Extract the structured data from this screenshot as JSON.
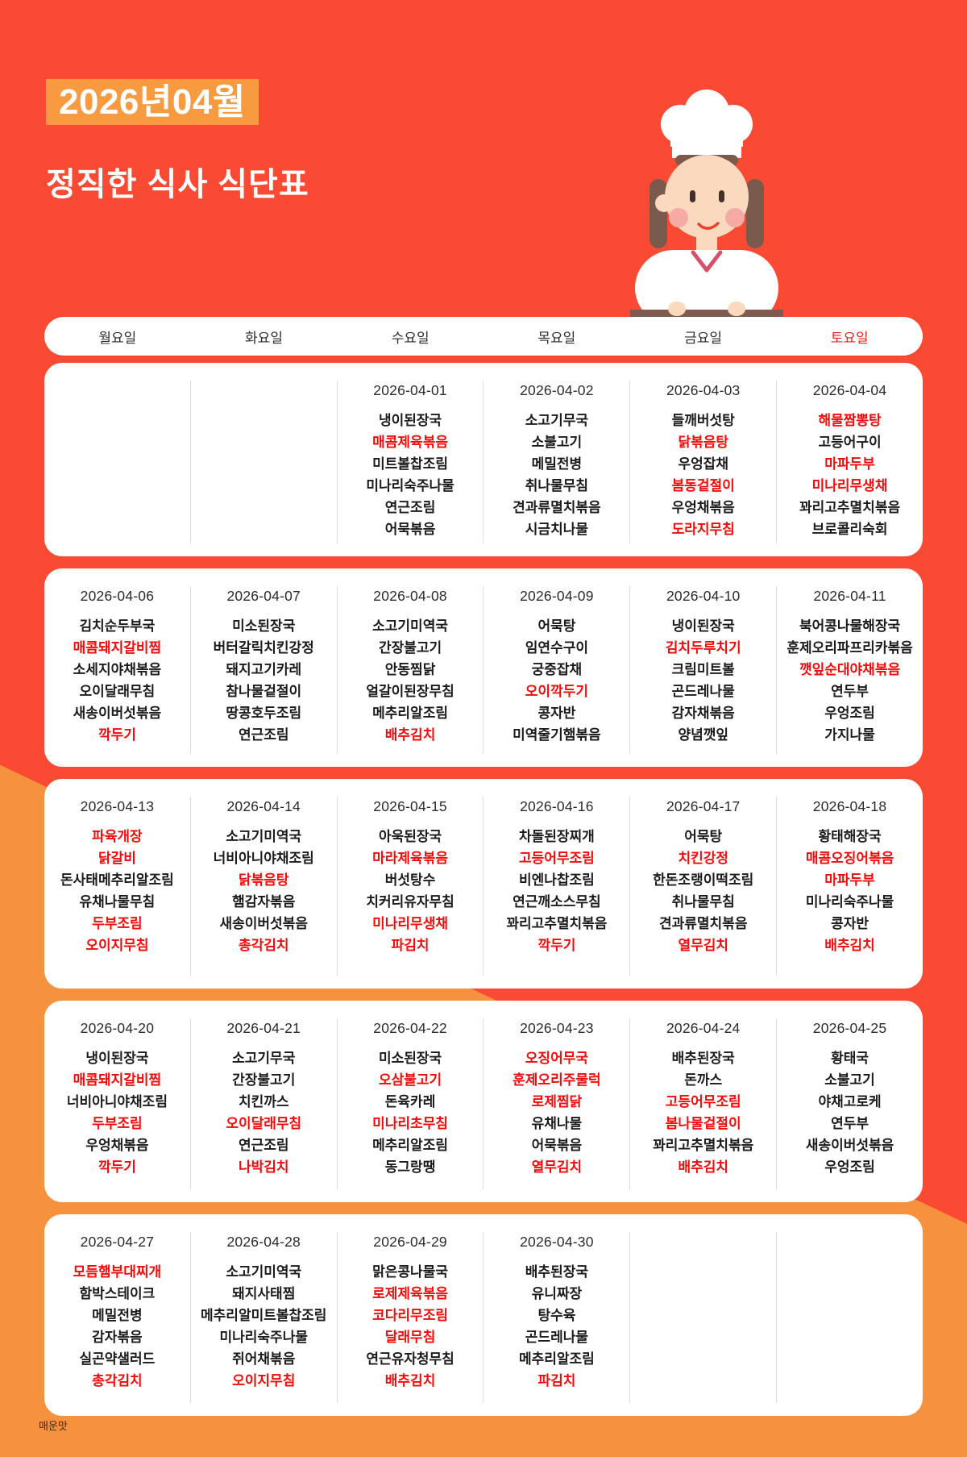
{
  "page": {
    "month_badge": "2026년04월",
    "title": "정직한 식사 식단표",
    "legend": "매운맛"
  },
  "colors": {
    "background_red": "#fb4a33",
    "background_orange": "#f6913e",
    "badge_orange": "#f89b40",
    "spicy_red": "#f50a0a",
    "saturday_red": "#fb1f1f",
    "card_white": "#ffffff"
  },
  "weekday_header": {
    "days": [
      "월요일",
      "화요일",
      "수요일",
      "목요일",
      "금요일",
      "토요일"
    ],
    "highlight_index": 5
  },
  "calendar": {
    "weeks": [
      {
        "days": [
          {
            "date": null,
            "items": []
          },
          {
            "date": null,
            "items": []
          },
          {
            "date": "2026-04-01",
            "items": [
              {
                "name": "냉이된장국",
                "spicy": false
              },
              {
                "name": "매콤제육볶음",
                "spicy": true
              },
              {
                "name": "미트볼찹조림",
                "spicy": false
              },
              {
                "name": "미나리숙주나물",
                "spicy": false
              },
              {
                "name": "연근조림",
                "spicy": false
              },
              {
                "name": "어묵볶음",
                "spicy": false
              }
            ]
          },
          {
            "date": "2026-04-02",
            "items": [
              {
                "name": "소고기무국",
                "spicy": false
              },
              {
                "name": "소불고기",
                "spicy": false
              },
              {
                "name": "메밀전병",
                "spicy": false
              },
              {
                "name": "취나물무침",
                "spicy": false
              },
              {
                "name": "견과류멸치볶음",
                "spicy": false
              },
              {
                "name": "시금치나물",
                "spicy": false
              }
            ]
          },
          {
            "date": "2026-04-03",
            "items": [
              {
                "name": "들깨버섯탕",
                "spicy": false
              },
              {
                "name": "닭볶음탕",
                "spicy": true
              },
              {
                "name": "우엉잡채",
                "spicy": false
              },
              {
                "name": "봄동겉절이",
                "spicy": true
              },
              {
                "name": "우엉채볶음",
                "spicy": false
              },
              {
                "name": "도라지무침",
                "spicy": true
              }
            ]
          },
          {
            "date": "2026-04-04",
            "items": [
              {
                "name": "해물짬뽕탕",
                "spicy": true
              },
              {
                "name": "고등어구이",
                "spicy": false
              },
              {
                "name": "마파두부",
                "spicy": true
              },
              {
                "name": "미나리무생채",
                "spicy": true
              },
              {
                "name": "꽈리고추멸치볶음",
                "spicy": false
              },
              {
                "name": "브로콜리숙회",
                "spicy": false
              }
            ]
          }
        ]
      },
      {
        "days": [
          {
            "date": "2026-04-06",
            "items": [
              {
                "name": "김치순두부국",
                "spicy": false
              },
              {
                "name": "매콤돼지갈비찜",
                "spicy": true
              },
              {
                "name": "소세지야채볶음",
                "spicy": false
              },
              {
                "name": "오이달래무침",
                "spicy": false
              },
              {
                "name": "새송이버섯볶음",
                "spicy": false
              },
              {
                "name": "깍두기",
                "spicy": true
              }
            ]
          },
          {
            "date": "2026-04-07",
            "items": [
              {
                "name": "미소된장국",
                "spicy": false
              },
              {
                "name": "버터갈릭치킨강정",
                "spicy": false
              },
              {
                "name": "돼지고기카레",
                "spicy": false
              },
              {
                "name": "참나물겉절이",
                "spicy": false
              },
              {
                "name": "땅콩호두조림",
                "spicy": false
              },
              {
                "name": "연근조림",
                "spicy": false
              }
            ]
          },
          {
            "date": "2026-04-08",
            "items": [
              {
                "name": "소고기미역국",
                "spicy": false
              },
              {
                "name": "간장불고기",
                "spicy": false
              },
              {
                "name": "안동찜닭",
                "spicy": false
              },
              {
                "name": "얼갈이된장무침",
                "spicy": false
              },
              {
                "name": "메추리알조림",
                "spicy": false
              },
              {
                "name": "배추김치",
                "spicy": true
              }
            ]
          },
          {
            "date": "2026-04-09",
            "items": [
              {
                "name": "어묵탕",
                "spicy": false
              },
              {
                "name": "임연수구이",
                "spicy": false
              },
              {
                "name": "궁중잡채",
                "spicy": false
              },
              {
                "name": "오이깍두기",
                "spicy": true
              },
              {
                "name": "콩자반",
                "spicy": false
              },
              {
                "name": "미역줄기햄볶음",
                "spicy": false
              }
            ]
          },
          {
            "date": "2026-04-10",
            "items": [
              {
                "name": "냉이된장국",
                "spicy": false
              },
              {
                "name": "김치두루치기",
                "spicy": true
              },
              {
                "name": "크림미트볼",
                "spicy": false
              },
              {
                "name": "곤드레나물",
                "spicy": false
              },
              {
                "name": "감자채볶음",
                "spicy": false
              },
              {
                "name": "양념깻잎",
                "spicy": false
              }
            ]
          },
          {
            "date": "2026-04-11",
            "items": [
              {
                "name": "북어콩나물해장국",
                "spicy": false
              },
              {
                "name": "훈제오리파프리카볶음",
                "spicy": false
              },
              {
                "name": "깻잎순대야채볶음",
                "spicy": true
              },
              {
                "name": "연두부",
                "spicy": false
              },
              {
                "name": "우엉조림",
                "spicy": false
              },
              {
                "name": "가지나물",
                "spicy": false
              }
            ]
          }
        ]
      },
      {
        "days": [
          {
            "date": "2026-04-13",
            "items": [
              {
                "name": "파육개장",
                "spicy": true
              },
              {
                "name": "닭갈비",
                "spicy": true
              },
              {
                "name": "돈사태메추리알조림",
                "spicy": false
              },
              {
                "name": "유채나물무침",
                "spicy": false
              },
              {
                "name": "두부조림",
                "spicy": true
              },
              {
                "name": "오이지무침",
                "spicy": true
              }
            ]
          },
          {
            "date": "2026-04-14",
            "items": [
              {
                "name": "소고기미역국",
                "spicy": false
              },
              {
                "name": "너비아니야채조림",
                "spicy": false
              },
              {
                "name": "닭볶음탕",
                "spicy": true
              },
              {
                "name": "햄감자볶음",
                "spicy": false
              },
              {
                "name": "새송이버섯볶음",
                "spicy": false
              },
              {
                "name": "총각김치",
                "spicy": true
              }
            ]
          },
          {
            "date": "2026-04-15",
            "items": [
              {
                "name": "아욱된장국",
                "spicy": false
              },
              {
                "name": "마라제육볶음",
                "spicy": true
              },
              {
                "name": "버섯탕수",
                "spicy": false
              },
              {
                "name": "치커리유자무침",
                "spicy": false
              },
              {
                "name": "미나리무생채",
                "spicy": true
              },
              {
                "name": "파김치",
                "spicy": true
              }
            ]
          },
          {
            "date": "2026-04-16",
            "items": [
              {
                "name": "차돌된장찌개",
                "spicy": false
              },
              {
                "name": "고등어무조림",
                "spicy": true
              },
              {
                "name": "비엔나찹조림",
                "spicy": false
              },
              {
                "name": "연근깨소스무침",
                "spicy": false
              },
              {
                "name": "꽈리고추멸치볶음",
                "spicy": false
              },
              {
                "name": "깍두기",
                "spicy": true
              }
            ]
          },
          {
            "date": "2026-04-17",
            "items": [
              {
                "name": "어묵탕",
                "spicy": false
              },
              {
                "name": "치킨강정",
                "spicy": true
              },
              {
                "name": "한돈조랭이떡조림",
                "spicy": false
              },
              {
                "name": "취나물무침",
                "spicy": false
              },
              {
                "name": "견과류멸치볶음",
                "spicy": false
              },
              {
                "name": "열무김치",
                "spicy": true
              }
            ]
          },
          {
            "date": "2026-04-18",
            "items": [
              {
                "name": "황태해장국",
                "spicy": false
              },
              {
                "name": "매콤오징어볶음",
                "spicy": true
              },
              {
                "name": "마파두부",
                "spicy": true
              },
              {
                "name": "미나리숙주나물",
                "spicy": false
              },
              {
                "name": "콩자반",
                "spicy": false
              },
              {
                "name": "배추김치",
                "spicy": true
              }
            ]
          }
        ]
      },
      {
        "days": [
          {
            "date": "2026-04-20",
            "items": [
              {
                "name": "냉이된장국",
                "spicy": false
              },
              {
                "name": "매콤돼지갈비찜",
                "spicy": true
              },
              {
                "name": "너비아니야채조림",
                "spicy": false
              },
              {
                "name": "두부조림",
                "spicy": true
              },
              {
                "name": "우엉채볶음",
                "spicy": false
              },
              {
                "name": "깍두기",
                "spicy": true
              }
            ]
          },
          {
            "date": "2026-04-21",
            "items": [
              {
                "name": "소고기무국",
                "spicy": false
              },
              {
                "name": "간장불고기",
                "spicy": false
              },
              {
                "name": "치킨까스",
                "spicy": false
              },
              {
                "name": "오이달래무침",
                "spicy": true
              },
              {
                "name": "연근조림",
                "spicy": false
              },
              {
                "name": "나박김치",
                "spicy": true
              }
            ]
          },
          {
            "date": "2026-04-22",
            "items": [
              {
                "name": "미소된장국",
                "spicy": false
              },
              {
                "name": "오삼불고기",
                "spicy": true
              },
              {
                "name": "돈육카레",
                "spicy": false
              },
              {
                "name": "미나리초무침",
                "spicy": true
              },
              {
                "name": "메추리알조림",
                "spicy": false
              },
              {
                "name": "동그랑땡",
                "spicy": false
              }
            ]
          },
          {
            "date": "2026-04-23",
            "items": [
              {
                "name": "오징어무국",
                "spicy": true
              },
              {
                "name": "훈제오리주물럭",
                "spicy": true
              },
              {
                "name": "로제찜닭",
                "spicy": true
              },
              {
                "name": "유채나물",
                "spicy": false
              },
              {
                "name": "어묵볶음",
                "spicy": false
              },
              {
                "name": "열무김치",
                "spicy": true
              }
            ]
          },
          {
            "date": "2026-04-24",
            "items": [
              {
                "name": "배추된장국",
                "spicy": false
              },
              {
                "name": "돈까스",
                "spicy": false
              },
              {
                "name": "고등어무조림",
                "spicy": true
              },
              {
                "name": "봄나물겉절이",
                "spicy": true
              },
              {
                "name": "꽈리고추멸치볶음",
                "spicy": false
              },
              {
                "name": "배추김치",
                "spicy": true
              }
            ]
          },
          {
            "date": "2026-04-25",
            "items": [
              {
                "name": "황태국",
                "spicy": false
              },
              {
                "name": "소불고기",
                "spicy": false
              },
              {
                "name": "야채고로케",
                "spicy": false
              },
              {
                "name": "연두부",
                "spicy": false
              },
              {
                "name": "새송이버섯볶음",
                "spicy": false
              },
              {
                "name": "우엉조림",
                "spicy": false
              }
            ]
          }
        ]
      },
      {
        "days": [
          {
            "date": "2026-04-27",
            "items": [
              {
                "name": "모듬햄부대찌개",
                "spicy": true
              },
              {
                "name": "함박스테이크",
                "spicy": false
              },
              {
                "name": "메밀전병",
                "spicy": false
              },
              {
                "name": "감자볶음",
                "spicy": false
              },
              {
                "name": "실곤약샐러드",
                "spicy": false
              },
              {
                "name": "총각김치",
                "spicy": true
              }
            ]
          },
          {
            "date": "2026-04-28",
            "items": [
              {
                "name": "소고기미역국",
                "spicy": false
              },
              {
                "name": "돼지사태찜",
                "spicy": false
              },
              {
                "name": "메추리알미트볼찹조림",
                "spicy": false
              },
              {
                "name": "미나리숙주나물",
                "spicy": false
              },
              {
                "name": "쥐어채볶음",
                "spicy": false
              },
              {
                "name": "오이지무침",
                "spicy": true
              }
            ]
          },
          {
            "date": "2026-04-29",
            "items": [
              {
                "name": "맑은콩나물국",
                "spicy": false
              },
              {
                "name": "로제제육볶음",
                "spicy": true
              },
              {
                "name": "코다리무조림",
                "spicy": true
              },
              {
                "name": "달래무침",
                "spicy": true
              },
              {
                "name": "연근유자청무침",
                "spicy": false
              },
              {
                "name": "배추김치",
                "spicy": true
              }
            ]
          },
          {
            "date": "2026-04-30",
            "items": [
              {
                "name": "배추된장국",
                "spicy": false
              },
              {
                "name": "유니짜장",
                "spicy": false
              },
              {
                "name": "탕수육",
                "spicy": false
              },
              {
                "name": "곤드레나물",
                "spicy": false
              },
              {
                "name": "메추리알조림",
                "spicy": false
              },
              {
                "name": "파김치",
                "spicy": true
              }
            ]
          },
          {
            "date": null,
            "items": []
          },
          {
            "date": null,
            "items": []
          }
        ]
      }
    ]
  }
}
